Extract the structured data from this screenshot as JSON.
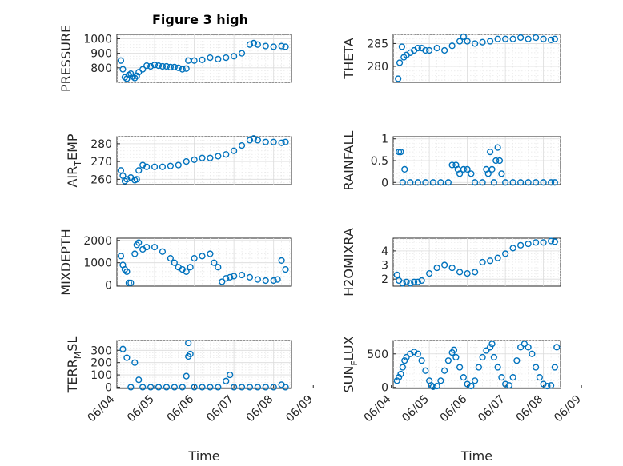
{
  "figure": {
    "title": "Figure 3 high",
    "marker_color": "#0072BD"
  },
  "chart_data": [
    {
      "type": "scatter",
      "ylabel": "PRESSURE",
      "ylim": [
        700,
        1030
      ],
      "yticks": [
        800,
        900,
        1000
      ],
      "xlim": [
        "06/04",
        "06/09"
      ],
      "grid": true,
      "points": [
        [
          4.15,
          850
        ],
        [
          4.2,
          790
        ],
        [
          4.25,
          735
        ],
        [
          4.3,
          725
        ],
        [
          4.35,
          750
        ],
        [
          4.4,
          760
        ],
        [
          4.45,
          740
        ],
        [
          4.5,
          730
        ],
        [
          4.55,
          745
        ],
        [
          4.6,
          770
        ],
        [
          4.7,
          790
        ],
        [
          4.8,
          815
        ],
        [
          4.9,
          810
        ],
        [
          5.0,
          820
        ],
        [
          5.1,
          815
        ],
        [
          5.2,
          810
        ],
        [
          5.3,
          810
        ],
        [
          5.4,
          805
        ],
        [
          5.5,
          805
        ],
        [
          5.6,
          800
        ],
        [
          5.7,
          790
        ],
        [
          5.8,
          795
        ],
        [
          5.85,
          850
        ],
        [
          6.0,
          850
        ],
        [
          6.2,
          855
        ],
        [
          6.4,
          870
        ],
        [
          6.6,
          860
        ],
        [
          6.8,
          870
        ],
        [
          7.0,
          880
        ],
        [
          7.2,
          900
        ],
        [
          7.4,
          960
        ],
        [
          7.5,
          970
        ],
        [
          7.6,
          960
        ],
        [
          7.8,
          950
        ],
        [
          8.0,
          945
        ],
        [
          8.2,
          950
        ],
        [
          8.3,
          945
        ]
      ]
    },
    {
      "type": "scatter",
      "ylabel": "THETA",
      "ylim": [
        276.5,
        287
      ],
      "yticks": [
        280,
        285
      ],
      "xlim": [
        "06/04",
        "06/09"
      ],
      "grid": true,
      "points": [
        [
          4.18,
          277.3
        ],
        [
          4.22,
          280.8
        ],
        [
          4.28,
          284.3
        ],
        [
          4.33,
          282
        ],
        [
          4.4,
          282.5
        ],
        [
          4.5,
          283
        ],
        [
          4.6,
          283.5
        ],
        [
          4.7,
          284
        ],
        [
          4.8,
          284
        ],
        [
          4.9,
          283.5
        ],
        [
          5.0,
          283.5
        ],
        [
          5.2,
          284
        ],
        [
          5.4,
          283.5
        ],
        [
          5.6,
          284.5
        ],
        [
          5.8,
          285.5
        ],
        [
          5.9,
          286.5
        ],
        [
          6.0,
          285.5
        ],
        [
          6.2,
          285
        ],
        [
          6.4,
          285.3
        ],
        [
          6.6,
          285.5
        ],
        [
          6.8,
          286
        ],
        [
          7.0,
          286
        ],
        [
          7.2,
          286
        ],
        [
          7.4,
          286.3
        ],
        [
          7.6,
          286
        ],
        [
          7.8,
          286.3
        ],
        [
          8.0,
          286
        ],
        [
          8.2,
          285.8
        ],
        [
          8.3,
          286
        ]
      ]
    },
    {
      "type": "scatter",
      "ylabel": "AIR_TEMP",
      "ylim": [
        257,
        284
      ],
      "yticks": [
        260,
        270,
        280
      ],
      "xlim": [
        "06/04",
        "06/09"
      ],
      "grid": true,
      "points": [
        [
          4.15,
          265
        ],
        [
          4.2,
          262
        ],
        [
          4.25,
          259
        ],
        [
          4.3,
          260
        ],
        [
          4.4,
          261
        ],
        [
          4.5,
          259.5
        ],
        [
          4.55,
          260
        ],
        [
          4.6,
          265
        ],
        [
          4.7,
          268
        ],
        [
          4.8,
          267
        ],
        [
          5.0,
          267
        ],
        [
          5.2,
          267
        ],
        [
          5.4,
          267.5
        ],
        [
          5.6,
          268
        ],
        [
          5.8,
          270
        ],
        [
          6.0,
          271
        ],
        [
          6.2,
          272
        ],
        [
          6.4,
          272
        ],
        [
          6.6,
          273
        ],
        [
          6.8,
          274
        ],
        [
          7.0,
          276
        ],
        [
          7.2,
          279
        ],
        [
          7.4,
          282
        ],
        [
          7.5,
          283
        ],
        [
          7.6,
          282
        ],
        [
          7.8,
          281
        ],
        [
          8.0,
          281
        ],
        [
          8.2,
          280.5
        ],
        [
          8.3,
          281
        ]
      ]
    },
    {
      "type": "scatter",
      "ylabel": "RAINFALL",
      "ylim": [
        -0.05,
        1.05
      ],
      "yticks": [
        0,
        0.5,
        1
      ],
      "xlim": [
        "06/04",
        "06/09"
      ],
      "grid": true,
      "points": [
        [
          4.2,
          0.7
        ],
        [
          4.25,
          0.7
        ],
        [
          4.35,
          0.3
        ],
        [
          4.3,
          0
        ],
        [
          4.5,
          0
        ],
        [
          4.7,
          0
        ],
        [
          4.9,
          0
        ],
        [
          5.1,
          0
        ],
        [
          5.3,
          0
        ],
        [
          5.5,
          0
        ],
        [
          5.6,
          0.4
        ],
        [
          5.7,
          0.4
        ],
        [
          5.75,
          0.3
        ],
        [
          5.8,
          0.2
        ],
        [
          5.9,
          0.3
        ],
        [
          6.0,
          0.3
        ],
        [
          6.1,
          0.2
        ],
        [
          6.2,
          0
        ],
        [
          6.4,
          0
        ],
        [
          6.5,
          0.3
        ],
        [
          6.55,
          0.2
        ],
        [
          6.6,
          0.7
        ],
        [
          6.65,
          0.3
        ],
        [
          6.7,
          0
        ],
        [
          6.75,
          0.5
        ],
        [
          6.8,
          0.8
        ],
        [
          6.85,
          0.5
        ],
        [
          6.9,
          0.2
        ],
        [
          7.0,
          0
        ],
        [
          7.2,
          0
        ],
        [
          7.4,
          0
        ],
        [
          7.6,
          0
        ],
        [
          7.8,
          0
        ],
        [
          8.0,
          0
        ],
        [
          8.2,
          0
        ],
        [
          8.3,
          0
        ]
      ]
    },
    {
      "type": "scatter",
      "ylabel": "MIXDEPTH",
      "ylim": [
        -50,
        2100
      ],
      "yticks": [
        0,
        1000,
        2000
      ],
      "xlim": [
        "06/04",
        "06/09"
      ],
      "grid": true,
      "points": [
        [
          4.15,
          1300
        ],
        [
          4.2,
          900
        ],
        [
          4.25,
          700
        ],
        [
          4.3,
          600
        ],
        [
          4.35,
          100
        ],
        [
          4.4,
          100
        ],
        [
          4.5,
          1400
        ],
        [
          4.55,
          1800
        ],
        [
          4.6,
          1900
        ],
        [
          4.7,
          1600
        ],
        [
          4.8,
          1700
        ],
        [
          5.0,
          1700
        ],
        [
          5.2,
          1500
        ],
        [
          5.4,
          1200
        ],
        [
          5.5,
          1000
        ],
        [
          5.6,
          800
        ],
        [
          5.7,
          700
        ],
        [
          5.8,
          600
        ],
        [
          5.9,
          800
        ],
        [
          6.0,
          1200
        ],
        [
          6.2,
          1300
        ],
        [
          6.4,
          1400
        ],
        [
          6.5,
          1000
        ],
        [
          6.6,
          800
        ],
        [
          6.7,
          150
        ],
        [
          6.8,
          300
        ],
        [
          6.9,
          350
        ],
        [
          7.0,
          400
        ],
        [
          7.2,
          450
        ],
        [
          7.4,
          350
        ],
        [
          7.6,
          250
        ],
        [
          7.8,
          200
        ],
        [
          8.0,
          200
        ],
        [
          8.1,
          250
        ],
        [
          8.2,
          1100
        ],
        [
          8.3,
          700
        ]
      ]
    },
    {
      "type": "scatter",
      "ylabel": "H2OMIXRA",
      "ylim": [
        1.5,
        4.9
      ],
      "yticks": [
        2,
        3,
        4
      ],
      "xlim": [
        "06/04",
        "06/09"
      ],
      "grid": true,
      "points": [
        [
          4.15,
          2.3
        ],
        [
          4.2,
          1.9
        ],
        [
          4.3,
          1.7
        ],
        [
          4.4,
          1.8
        ],
        [
          4.5,
          1.7
        ],
        [
          4.6,
          1.8
        ],
        [
          4.7,
          1.8
        ],
        [
          4.8,
          1.9
        ],
        [
          5.0,
          2.4
        ],
        [
          5.2,
          2.8
        ],
        [
          5.4,
          3.0
        ],
        [
          5.6,
          2.8
        ],
        [
          5.8,
          2.5
        ],
        [
          6.0,
          2.4
        ],
        [
          6.2,
          2.5
        ],
        [
          6.4,
          3.2
        ],
        [
          6.6,
          3.3
        ],
        [
          6.8,
          3.5
        ],
        [
          7.0,
          3.8
        ],
        [
          7.2,
          4.2
        ],
        [
          7.4,
          4.4
        ],
        [
          7.6,
          4.5
        ],
        [
          7.8,
          4.6
        ],
        [
          8.0,
          4.6
        ],
        [
          8.2,
          4.7
        ],
        [
          8.3,
          4.65
        ]
      ]
    },
    {
      "type": "scatter",
      "ylabel": "TERR_MSL",
      "ylim": [
        -10,
        380
      ],
      "yticks": [
        0,
        100,
        200,
        300
      ],
      "xlim": [
        "06/04",
        "06/09"
      ],
      "xticks": [
        "06/04",
        "06/05",
        "06/06",
        "06/07",
        "06/08",
        "06/09"
      ],
      "xlabel": "Time",
      "grid": true,
      "points": [
        [
          4.2,
          310
        ],
        [
          4.3,
          240
        ],
        [
          4.5,
          200
        ],
        [
          4.6,
          60
        ],
        [
          4.4,
          0
        ],
        [
          4.7,
          0
        ],
        [
          4.9,
          0
        ],
        [
          5.1,
          0
        ],
        [
          5.3,
          0
        ],
        [
          5.5,
          0
        ],
        [
          5.7,
          0
        ],
        [
          5.8,
          90
        ],
        [
          5.85,
          250
        ],
        [
          5.9,
          270
        ],
        [
          5.85,
          360
        ],
        [
          6.0,
          0
        ],
        [
          6.2,
          0
        ],
        [
          6.4,
          0
        ],
        [
          6.6,
          0
        ],
        [
          6.8,
          50
        ],
        [
          6.9,
          100
        ],
        [
          7.0,
          0
        ],
        [
          7.2,
          0
        ],
        [
          7.4,
          0
        ],
        [
          7.6,
          0
        ],
        [
          7.8,
          0
        ],
        [
          8.0,
          0
        ],
        [
          8.2,
          20
        ],
        [
          8.3,
          0
        ]
      ]
    },
    {
      "type": "scatter",
      "ylabel": "SUN_FLUX",
      "ylim": [
        -15,
        700
      ],
      "yticks": [
        0,
        500
      ],
      "xlim": [
        "06/04",
        "06/09"
      ],
      "xticks": [
        "06/04",
        "06/05",
        "06/06",
        "06/07",
        "06/08",
        "06/09"
      ],
      "xlabel": "Time",
      "grid": true,
      "points": [
        [
          4.15,
          100
        ],
        [
          4.2,
          150
        ],
        [
          4.25,
          200
        ],
        [
          4.3,
          300
        ],
        [
          4.35,
          400
        ],
        [
          4.4,
          450
        ],
        [
          4.5,
          500
        ],
        [
          4.6,
          530
        ],
        [
          4.7,
          500
        ],
        [
          4.8,
          400
        ],
        [
          4.9,
          250
        ],
        [
          5.0,
          100
        ],
        [
          5.05,
          30
        ],
        [
          5.1,
          10
        ],
        [
          5.2,
          20
        ],
        [
          5.3,
          100
        ],
        [
          5.4,
          250
        ],
        [
          5.5,
          400
        ],
        [
          5.6,
          520
        ],
        [
          5.65,
          560
        ],
        [
          5.7,
          450
        ],
        [
          5.8,
          300
        ],
        [
          5.9,
          150
        ],
        [
          6.0,
          50
        ],
        [
          6.1,
          20
        ],
        [
          6.2,
          100
        ],
        [
          6.3,
          300
        ],
        [
          6.4,
          450
        ],
        [
          6.5,
          550
        ],
        [
          6.6,
          600
        ],
        [
          6.65,
          650
        ],
        [
          6.7,
          450
        ],
        [
          6.8,
          300
        ],
        [
          6.9,
          150
        ],
        [
          7.0,
          50
        ],
        [
          7.1,
          30
        ],
        [
          7.2,
          150
        ],
        [
          7.3,
          400
        ],
        [
          7.4,
          600
        ],
        [
          7.5,
          650
        ],
        [
          7.6,
          600
        ],
        [
          7.7,
          500
        ],
        [
          7.8,
          300
        ],
        [
          7.9,
          150
        ],
        [
          8.0,
          50
        ],
        [
          8.1,
          20
        ],
        [
          8.2,
          30
        ],
        [
          8.3,
          300
        ],
        [
          8.35,
          600
        ]
      ]
    }
  ]
}
